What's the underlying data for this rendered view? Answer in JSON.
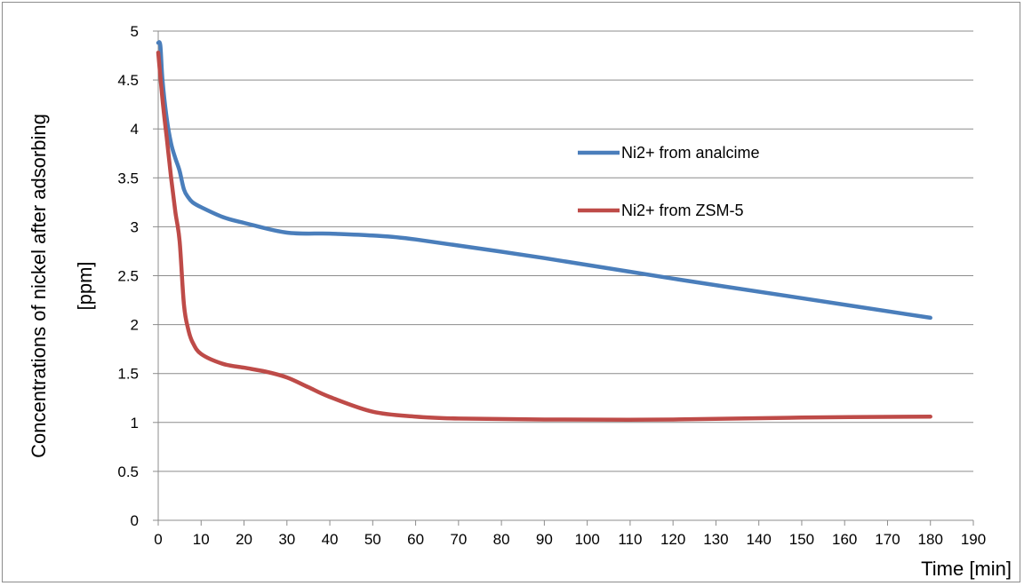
{
  "chart_data": {
    "type": "line",
    "title": "",
    "xlabel": "Time [min]",
    "ylabel_line1": "Concentrations of nickel after adsorbing",
    "ylabel_line2": "[ppm]",
    "xlim": [
      0,
      190
    ],
    "ylim": [
      0,
      5
    ],
    "x_ticks": [
      0,
      10,
      20,
      30,
      40,
      50,
      60,
      70,
      80,
      90,
      100,
      110,
      120,
      130,
      140,
      150,
      160,
      170,
      180,
      190
    ],
    "y_ticks": [
      "0",
      "0.5",
      "1",
      "1.5",
      "2",
      "2.5",
      "3",
      "3.5",
      "4",
      "4.5",
      "5"
    ],
    "grid": "horizontal",
    "legend_position": "right-center",
    "series": [
      {
        "name": "Ni2+ from analcime",
        "color": "#4a7ebb",
        "x": [
          0,
          0.5,
          1,
          2,
          3,
          4,
          5,
          6,
          7,
          8,
          10,
          15,
          20,
          30,
          40,
          50,
          60,
          90,
          120,
          150,
          180
        ],
        "y": [
          4.88,
          4.85,
          4.5,
          4.1,
          3.85,
          3.7,
          3.57,
          3.38,
          3.3,
          3.25,
          3.2,
          3.1,
          3.04,
          2.94,
          2.93,
          2.91,
          2.87,
          2.68,
          2.47,
          2.27,
          2.07
        ]
      },
      {
        "name": "Ni2+ from ZSM-5",
        "color": "#be4b48",
        "x": [
          0,
          1,
          2,
          3,
          4,
          5,
          6,
          7,
          8,
          10,
          15,
          20,
          25,
          30,
          35,
          40,
          50,
          60,
          70,
          90,
          120,
          150,
          180
        ],
        "y": [
          4.78,
          4.3,
          3.9,
          3.5,
          3.15,
          2.85,
          2.2,
          1.95,
          1.82,
          1.7,
          1.6,
          1.56,
          1.52,
          1.46,
          1.36,
          1.26,
          1.11,
          1.06,
          1.04,
          1.03,
          1.03,
          1.05,
          1.06
        ]
      }
    ]
  }
}
